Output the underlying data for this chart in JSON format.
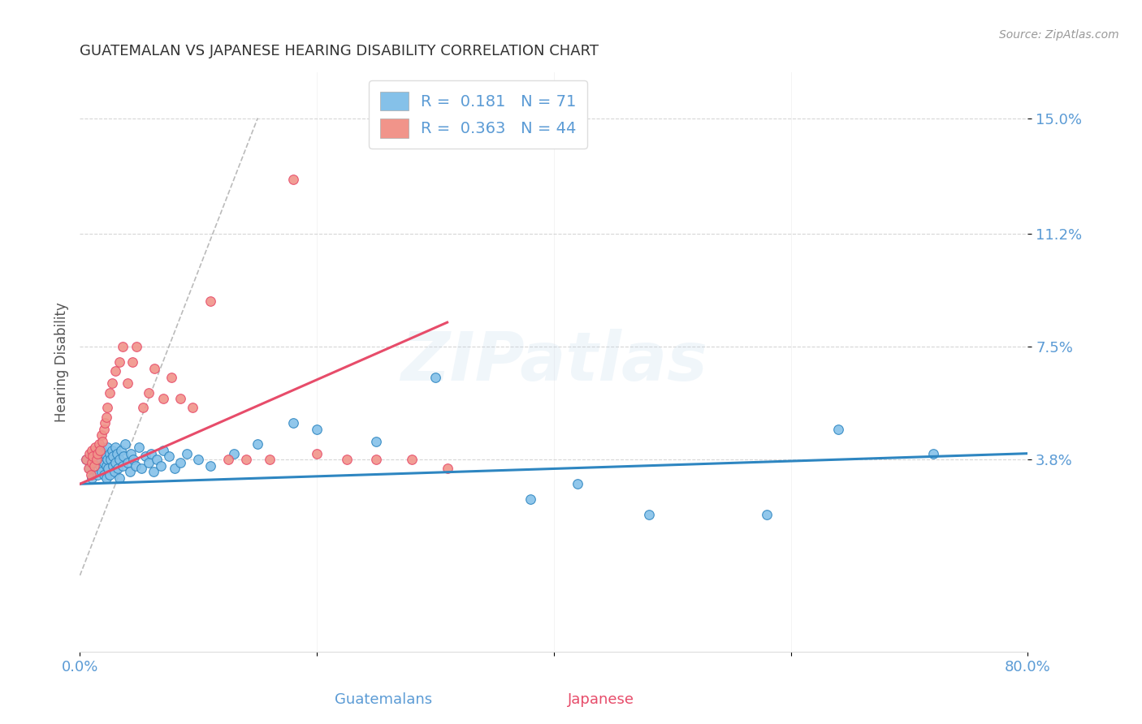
{
  "title": "GUATEMALAN VS JAPANESE HEARING DISABILITY CORRELATION CHART",
  "source": "Source: ZipAtlas.com",
  "xlabel_guatemalans": "Guatemalans",
  "xlabel_japanese": "Japanese",
  "ylabel": "Hearing Disability",
  "xlim": [
    0.0,
    0.8
  ],
  "ylim": [
    -0.025,
    0.165
  ],
  "ytick_positions": [
    0.038,
    0.075,
    0.112,
    0.15
  ],
  "ytick_labels": [
    "3.8%",
    "7.5%",
    "11.2%",
    "15.0%"
  ],
  "r_guatemalan": 0.181,
  "n_guatemalan": 71,
  "r_japanese": 0.363,
  "n_japanese": 44,
  "color_guatemalan": "#85C1E9",
  "color_japanese": "#F1948A",
  "color_line_guatemalan": "#2E86C1",
  "color_line_japanese": "#E74C6A",
  "color_diagonal": "#AAAAAA",
  "color_axis_labels": "#5B9BD5",
  "watermark_text": "ZIPatlas",
  "blue_scatter_x": [
    0.005,
    0.008,
    0.01,
    0.01,
    0.012,
    0.013,
    0.015,
    0.015,
    0.016,
    0.017,
    0.018,
    0.018,
    0.019,
    0.02,
    0.02,
    0.02,
    0.021,
    0.022,
    0.022,
    0.023,
    0.023,
    0.024,
    0.025,
    0.025,
    0.026,
    0.027,
    0.028,
    0.028,
    0.029,
    0.03,
    0.03,
    0.031,
    0.032,
    0.033,
    0.033,
    0.035,
    0.036,
    0.037,
    0.038,
    0.04,
    0.042,
    0.043,
    0.045,
    0.047,
    0.05,
    0.052,
    0.055,
    0.058,
    0.06,
    0.062,
    0.065,
    0.068,
    0.07,
    0.075,
    0.08,
    0.085,
    0.09,
    0.1,
    0.11,
    0.13,
    0.15,
    0.18,
    0.2,
    0.25,
    0.3,
    0.38,
    0.42,
    0.48,
    0.58,
    0.64,
    0.72
  ],
  "blue_scatter_y": [
    0.038,
    0.035,
    0.04,
    0.032,
    0.037,
    0.041,
    0.039,
    0.033,
    0.042,
    0.036,
    0.038,
    0.034,
    0.041,
    0.037,
    0.033,
    0.039,
    0.04,
    0.036,
    0.032,
    0.038,
    0.042,
    0.035,
    0.04,
    0.033,
    0.038,
    0.041,
    0.036,
    0.039,
    0.034,
    0.042,
    0.037,
    0.04,
    0.035,
    0.038,
    0.032,
    0.041,
    0.036,
    0.039,
    0.043,
    0.037,
    0.034,
    0.04,
    0.038,
    0.036,
    0.042,
    0.035,
    0.039,
    0.037,
    0.04,
    0.034,
    0.038,
    0.036,
    0.041,
    0.039,
    0.035,
    0.037,
    0.04,
    0.038,
    0.036,
    0.04,
    0.043,
    0.05,
    0.048,
    0.044,
    0.065,
    0.025,
    0.03,
    0.02,
    0.02,
    0.048,
    0.04
  ],
  "pink_scatter_x": [
    0.005,
    0.007,
    0.008,
    0.009,
    0.01,
    0.01,
    0.011,
    0.012,
    0.013,
    0.014,
    0.015,
    0.016,
    0.017,
    0.018,
    0.019,
    0.02,
    0.021,
    0.022,
    0.023,
    0.025,
    0.027,
    0.03,
    0.033,
    0.036,
    0.04,
    0.044,
    0.048,
    0.053,
    0.058,
    0.063,
    0.07,
    0.077,
    0.085,
    0.095,
    0.11,
    0.125,
    0.14,
    0.16,
    0.18,
    0.2,
    0.225,
    0.25,
    0.28,
    0.31
  ],
  "pink_scatter_y": [
    0.038,
    0.035,
    0.04,
    0.033,
    0.037,
    0.041,
    0.039,
    0.036,
    0.042,
    0.038,
    0.04,
    0.043,
    0.041,
    0.046,
    0.044,
    0.048,
    0.05,
    0.052,
    0.055,
    0.06,
    0.063,
    0.067,
    0.07,
    0.075,
    0.063,
    0.07,
    0.075,
    0.055,
    0.06,
    0.068,
    0.058,
    0.065,
    0.058,
    0.055,
    0.09,
    0.038,
    0.038,
    0.038,
    0.13,
    0.04,
    0.038,
    0.038,
    0.038,
    0.035
  ],
  "blue_line_x": [
    0.0,
    0.8
  ],
  "blue_line_y": [
    0.03,
    0.04
  ],
  "pink_line_x": [
    0.0,
    0.31
  ],
  "pink_line_y": [
    0.03,
    0.083
  ],
  "diag_line_x": [
    0.0,
    0.15
  ],
  "diag_line_y": [
    0.0,
    0.15
  ]
}
